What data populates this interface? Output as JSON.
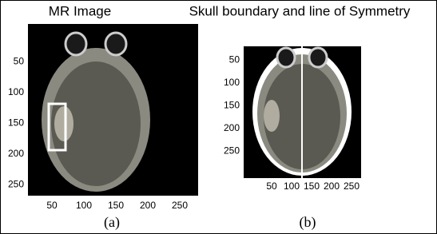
{
  "panels": [
    {
      "title": "MR Image",
      "caption": "(a)",
      "yticks": [
        50,
        100,
        150,
        200,
        250
      ],
      "xticks": [
        50,
        100,
        150,
        200,
        250
      ]
    },
    {
      "title": "Skull boundary and line of Symmetry",
      "caption": "(b)",
      "yticks": [
        50,
        100,
        150,
        200,
        250
      ],
      "xticks": [
        50,
        100,
        150,
        200,
        250
      ]
    }
  ]
}
